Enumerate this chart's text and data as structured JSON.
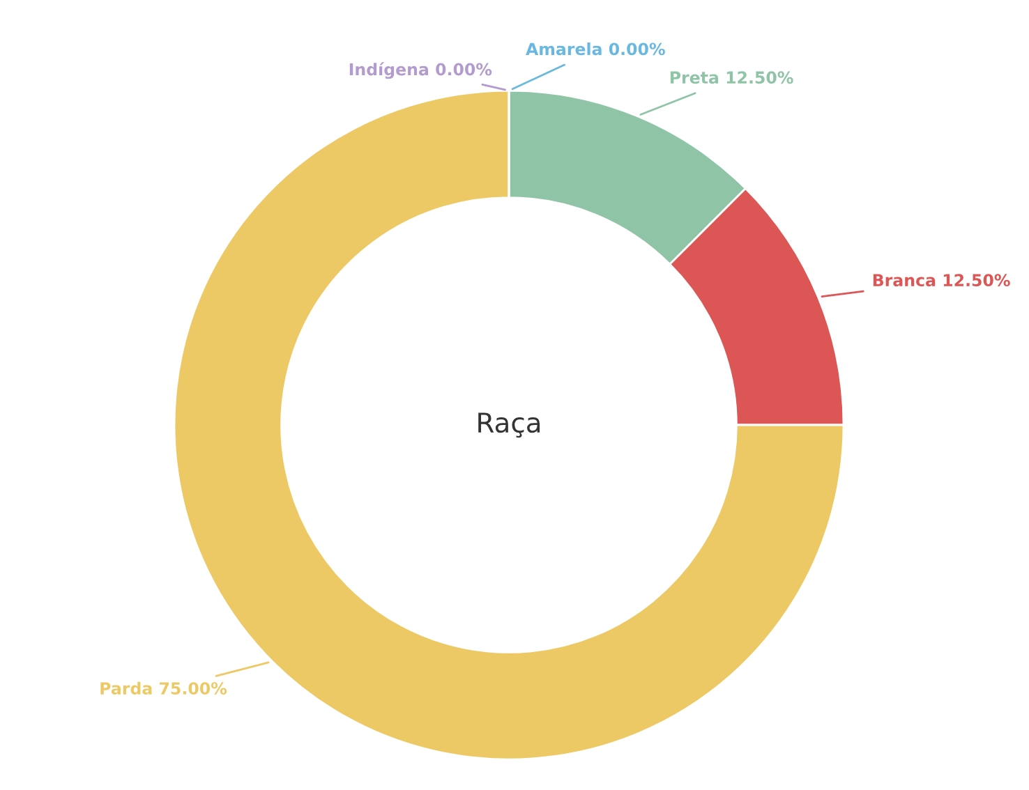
{
  "chart_data": {
    "type": "donut",
    "title": "Raça",
    "categories": [
      "Preta",
      "Branca",
      "Parda",
      "Indígena",
      "Amarela"
    ],
    "values": [
      12.5,
      12.5,
      75,
      0,
      0
    ],
    "value_labels": [
      "12.50%",
      "12.50%",
      "75.00%",
      "0.00%",
      "0.00%"
    ],
    "colors": [
      "#8fc4a6",
      "#dc5656",
      "#edc965",
      "#b39bcd",
      "#6ab8e0"
    ]
  }
}
